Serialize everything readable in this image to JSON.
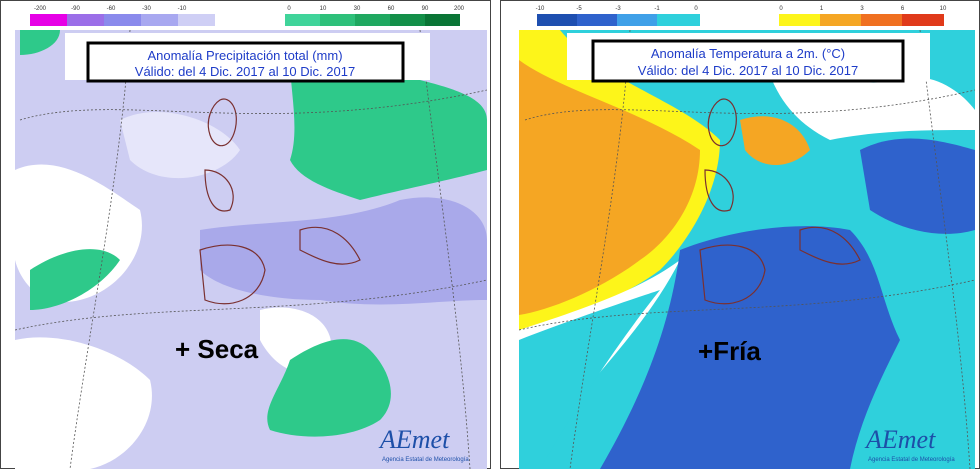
{
  "left_panel": {
    "legend": {
      "negative": [
        -200,
        -90,
        -60,
        -30,
        -10
      ],
      "positive": [
        0,
        10,
        30,
        60,
        90,
        200
      ]
    },
    "title_box": {
      "line1": "Anomalía Precipitación total (mm)",
      "line2": "Válido: del 4 Dic. 2017 al 10 Dic. 2017"
    },
    "annotation": "+ Seca",
    "logo": {
      "name": "AEmet",
      "subtitle": "Agencia Estatal de Meteorología"
    }
  },
  "right_panel": {
    "legend": {
      "negative": [
        -10,
        -5,
        -3,
        -1,
        0
      ],
      "positive": [
        0,
        1,
        3,
        6,
        10
      ]
    },
    "title_box": {
      "line1": "Anomalía Temperatura a 2m. (°C)",
      "line2": "Válido: del 4 Dic. 2017 al 10 Dic. 2017"
    },
    "annotation": "+Fría",
    "logo": {
      "name": "AEmet",
      "subtitle": "Agencia Estatal de Meteorología"
    }
  }
}
